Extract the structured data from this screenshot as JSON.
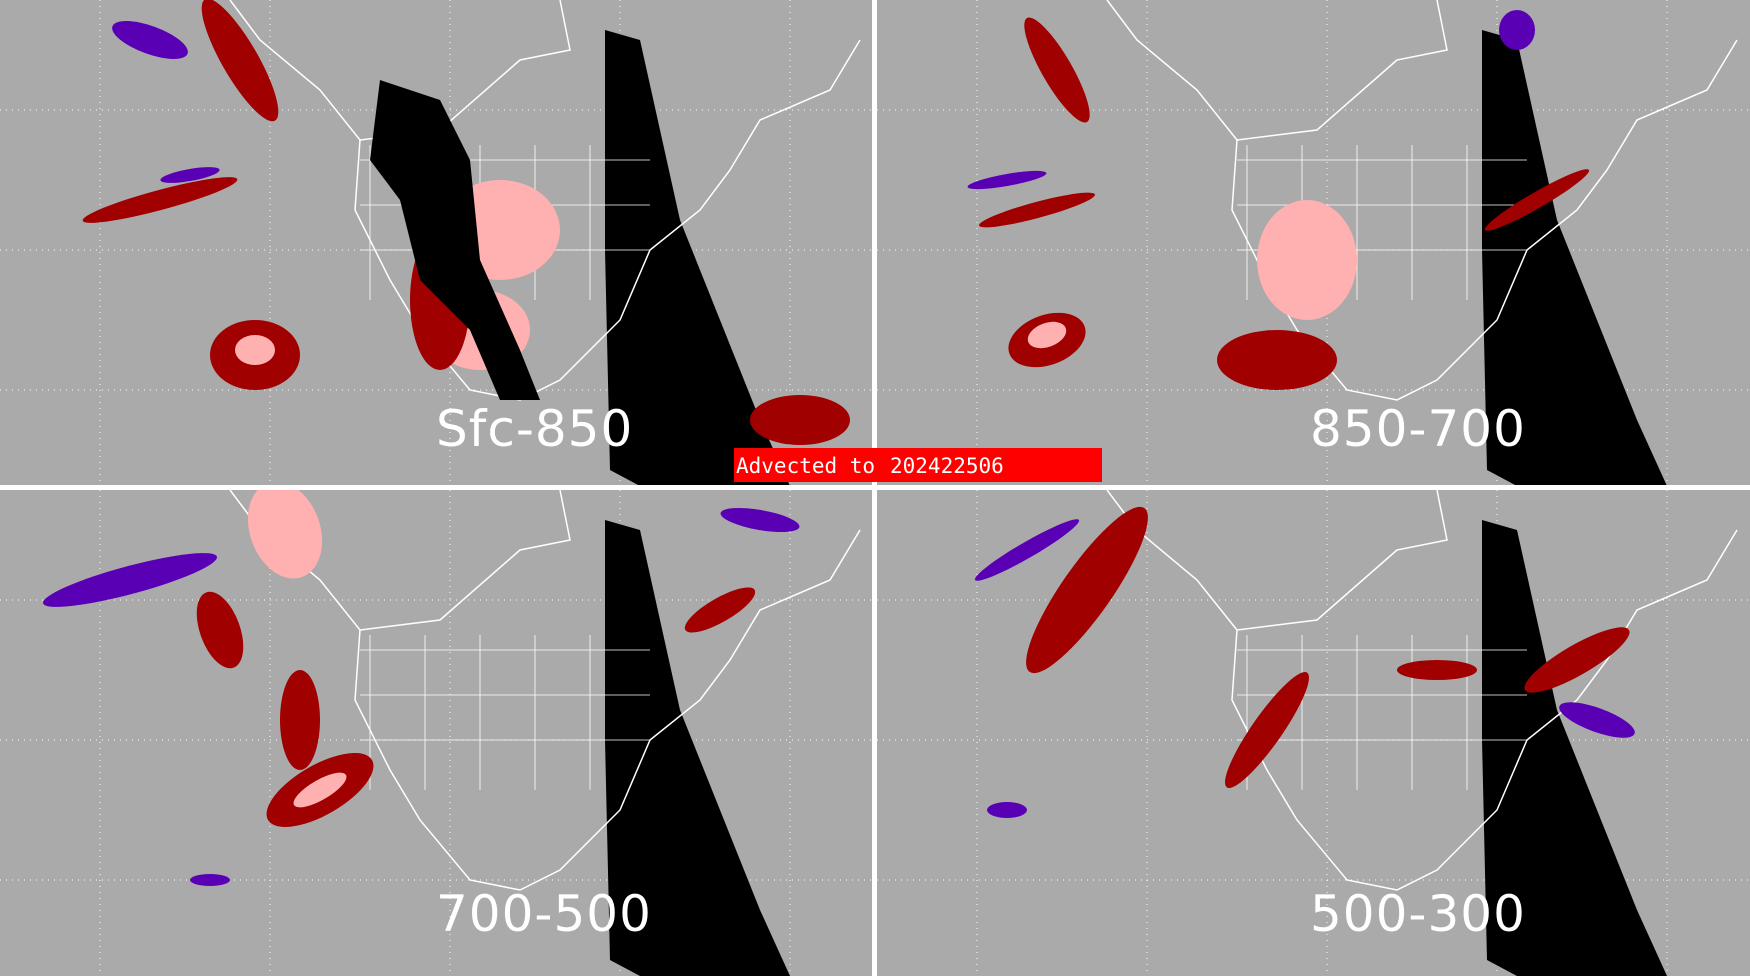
{
  "panels": [
    {
      "label": "Sfc-850"
    },
    {
      "label": "850-700"
    },
    {
      "label": "700-500"
    },
    {
      "label": "500-300"
    }
  ],
  "banner": {
    "prefix": "Advected to",
    "time": "202422506"
  },
  "colors": {
    "background": "#aaaaaa",
    "night": "#000000",
    "dark_red": "#a00000",
    "pink": "#ffb0b0",
    "purple": "#5a00b4",
    "banner": "#ff0000",
    "outline": "#ffffff"
  }
}
